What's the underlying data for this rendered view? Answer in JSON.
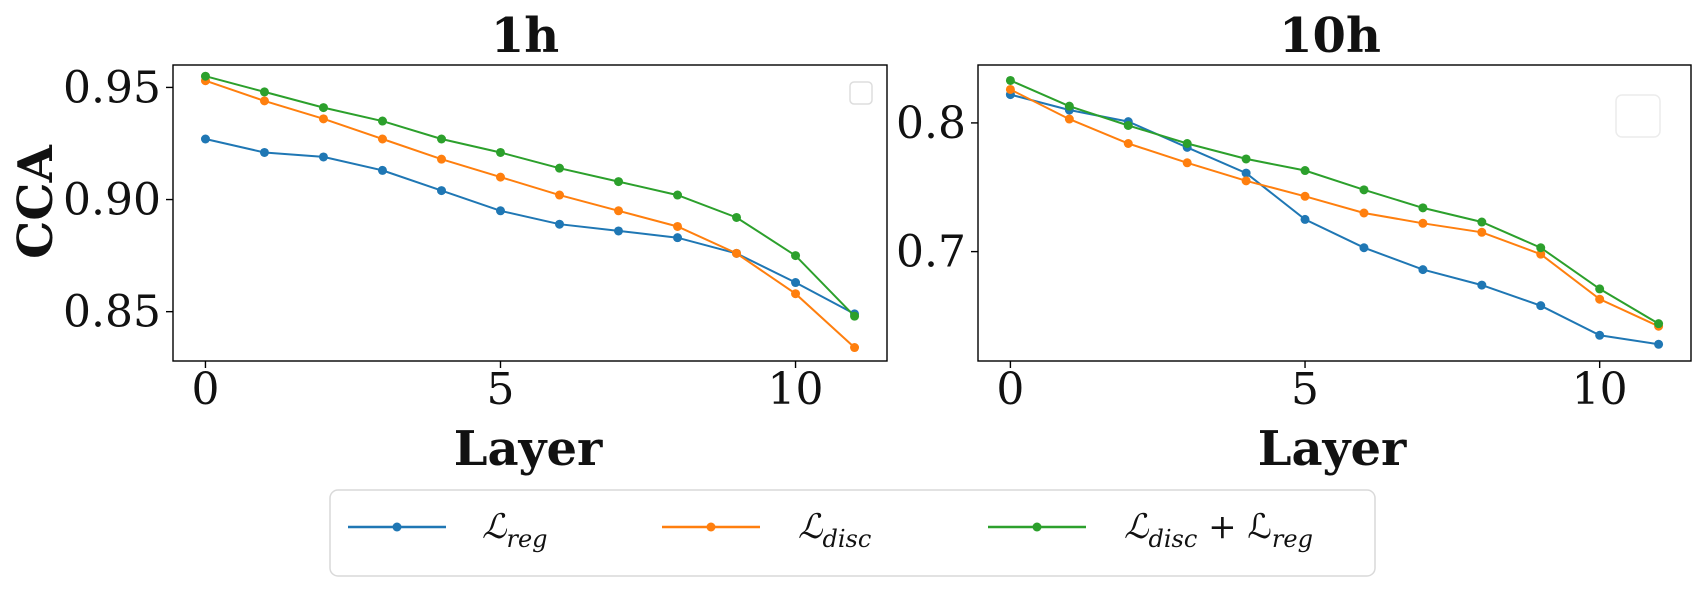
{
  "chart_data": [
    {
      "type": "line",
      "title": "1h",
      "xlabel": "Layer",
      "ylabel": "CCA",
      "xlim": [
        -0.55,
        11.55
      ],
      "ylim": [
        0.828,
        0.96
      ],
      "xticks": [
        0,
        5,
        10
      ],
      "xtick_labels": [
        "0",
        "5",
        "10"
      ],
      "yticks": [
        0.85,
        0.9,
        0.95
      ],
      "ytick_labels": [
        "0.85",
        "0.90",
        "0.95"
      ],
      "x": [
        0,
        1,
        2,
        3,
        4,
        5,
        6,
        7,
        8,
        9,
        10,
        11
      ],
      "series": [
        {
          "name": "L_reg",
          "color": "#1f77b4",
          "values": [
            0.927,
            0.921,
            0.919,
            0.913,
            0.904,
            0.895,
            0.889,
            0.886,
            0.883,
            0.876,
            0.863,
            0.849
          ]
        },
        {
          "name": "L_disc",
          "color": "#ff7f0e",
          "values": [
            0.953,
            0.944,
            0.936,
            0.927,
            0.918,
            0.91,
            0.902,
            0.895,
            0.888,
            0.876,
            0.858,
            0.834
          ]
        },
        {
          "name": "L_disc + L_reg",
          "color": "#2ca02c",
          "values": [
            0.955,
            0.948,
            0.941,
            0.935,
            0.927,
            0.921,
            0.914,
            0.908,
            0.902,
            0.892,
            0.875,
            0.848
          ]
        }
      ]
    },
    {
      "type": "line",
      "title": "10h",
      "xlabel": "Layer",
      "ylabel": "",
      "xlim": [
        -0.55,
        11.55
      ],
      "ylim": [
        0.615,
        0.845
      ],
      "xticks": [
        0,
        5,
        10
      ],
      "xtick_labels": [
        "0",
        "5",
        "10"
      ],
      "yticks": [
        0.7,
        0.8
      ],
      "ytick_labels": [
        "0.7",
        "0.8"
      ],
      "x": [
        0,
        1,
        2,
        3,
        4,
        5,
        6,
        7,
        8,
        9,
        10,
        11
      ],
      "series": [
        {
          "name": "L_reg",
          "color": "#1f77b4",
          "values": [
            0.822,
            0.81,
            0.801,
            0.781,
            0.761,
            0.725,
            0.703,
            0.686,
            0.674,
            0.658,
            0.635,
            0.628
          ]
        },
        {
          "name": "L_disc",
          "color": "#ff7f0e",
          "values": [
            0.826,
            0.803,
            0.784,
            0.769,
            0.755,
            0.743,
            0.73,
            0.722,
            0.715,
            0.698,
            0.663,
            0.642
          ]
        },
        {
          "name": "L_disc + L_reg",
          "color": "#2ca02c",
          "values": [
            0.833,
            0.813,
            0.798,
            0.784,
            0.772,
            0.763,
            0.748,
            0.734,
            0.723,
            0.703,
            0.671,
            0.644
          ]
        }
      ]
    }
  ],
  "legend": {
    "placement": "bottom-center",
    "entries": [
      {
        "main": "ℒ",
        "sub": "reg",
        "color": "#1f77b4"
      },
      {
        "main": "ℒ",
        "sub": "disc",
        "color": "#ff7f0e"
      },
      {
        "main": "ℒ",
        "sub": "disc",
        "main2": " + ℒ",
        "sub2": "reg",
        "color": "#2ca02c"
      }
    ]
  }
}
